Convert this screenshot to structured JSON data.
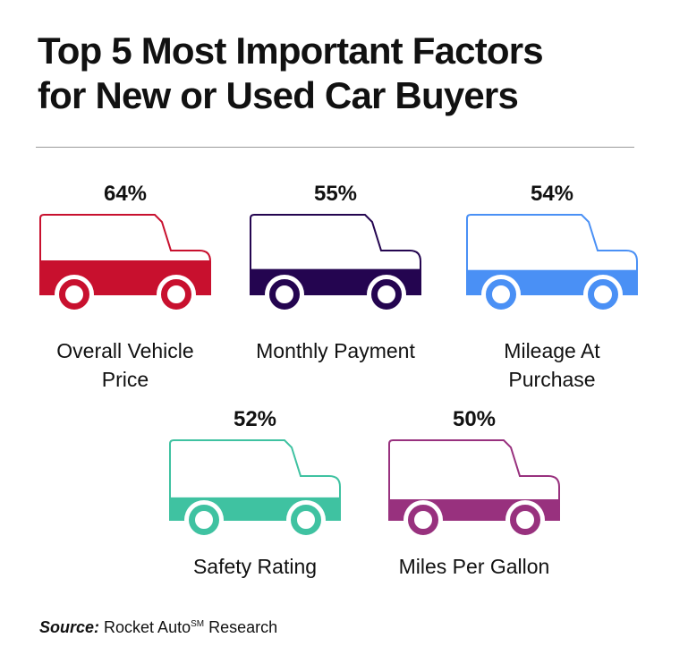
{
  "title_lines": [
    "Top 5 Most Important Factors",
    "for New or Used Car Buyers"
  ],
  "source": {
    "prefix": "Source:",
    "text": " Rocket Auto",
    "superscript": "SM",
    "suffix": " Research"
  },
  "chart_data": {
    "type": "bar",
    "title": "Top 5 Most Important Factors for New or Used Car Buyers",
    "categories": [
      [
        "Overall Vehicle",
        "Price"
      ],
      [
        "Monthly Payment"
      ],
      [
        "Mileage At",
        "Purchase"
      ],
      [
        "Safety Rating"
      ],
      [
        "Miles Per Gallon"
      ]
    ],
    "values": [
      64,
      55,
      54,
      52,
      50
    ],
    "value_labels": [
      "64%",
      "55%",
      "54%",
      "52%",
      "50%"
    ],
    "unit": "%",
    "colors": [
      "#c8102e",
      "#240550",
      "#4a90f5",
      "#3fc2a1",
      "#98317e"
    ]
  }
}
